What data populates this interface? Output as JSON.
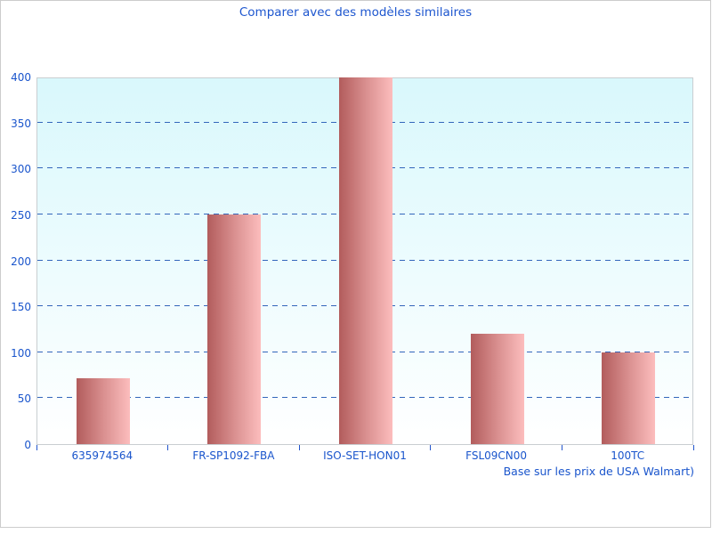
{
  "title": "Comparer avec des modèles similaires",
  "caption": "Base sur les prix de USA Walmart)",
  "colors": {
    "text_blue": "#1a55cc",
    "gridline_blue": "#3366bb",
    "bar_gradient_left": "#b25c5c",
    "bar_gradient_right": "#fcbdbd",
    "plot_bg_top": "#d9f8fc",
    "plot_bg_bottom": "#ffffff",
    "plot_border": "#c9ced1",
    "frame_border": "#cccccc"
  },
  "chart_data": {
    "type": "bar",
    "title": "Comparer avec des modèles similaires",
    "categories": [
      "635974564",
      "FR-SP1092-FBA",
      "ISO-SET-HON01",
      "FSL09CN00",
      "100TC"
    ],
    "values": [
      72,
      250,
      399,
      120,
      100
    ],
    "xlabel": "",
    "ylabel": "",
    "ylim": [
      0,
      400
    ],
    "yticks": [
      0,
      50,
      100,
      150,
      200,
      250,
      300,
      350,
      400
    ],
    "grid": "horizontal-dashed",
    "legend": "none",
    "annotation": "Base sur les prix de USA Walmart)"
  }
}
